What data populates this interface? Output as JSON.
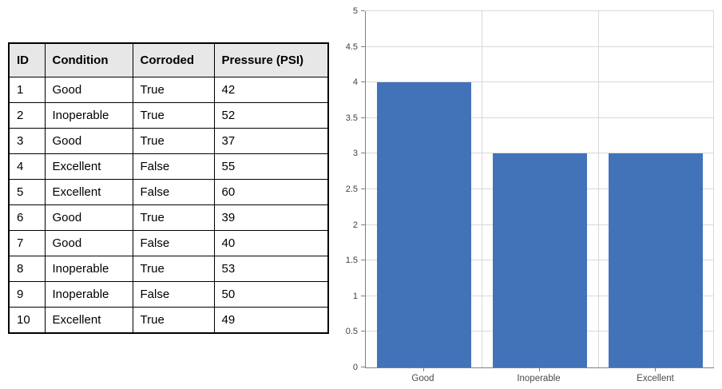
{
  "table": {
    "headers": [
      "ID",
      "Condition",
      "Corroded",
      "Pressure (PSI)"
    ],
    "rows": [
      [
        "1",
        "Good",
        "True",
        "42"
      ],
      [
        "2",
        "Inoperable",
        "True",
        "52"
      ],
      [
        "3",
        "Good",
        "True",
        "37"
      ],
      [
        "4",
        "Excellent",
        "False",
        "55"
      ],
      [
        "5",
        "Excellent",
        "False",
        "60"
      ],
      [
        "6",
        "Good",
        "True",
        "39"
      ],
      [
        "7",
        "Good",
        "False",
        "40"
      ],
      [
        "8",
        "Inoperable",
        "True",
        "53"
      ],
      [
        "9",
        "Inoperable",
        "False",
        "50"
      ],
      [
        "10",
        "Excellent",
        "True",
        "49"
      ]
    ],
    "header_bg": "#E7E7E7",
    "border_color": "#000000"
  },
  "chart_data": {
    "type": "bar",
    "categories": [
      "Good",
      "Inoperable",
      "Excellent"
    ],
    "values": [
      4,
      3,
      3
    ],
    "title": "",
    "xlabel": "",
    "ylabel": "",
    "ylim": [
      0,
      5
    ],
    "ytick_step": 0.5,
    "ytick_labels": [
      "0",
      "0.5",
      "1",
      "1.5",
      "2",
      "2.5",
      "3",
      "3.5",
      "4",
      "4.5",
      "5"
    ],
    "grid": true,
    "legend": false,
    "bar_color": "#4273B8",
    "gridline_color": "#D9D9D9",
    "axis_color": "#808080",
    "tick_label_color": "#404040"
  }
}
